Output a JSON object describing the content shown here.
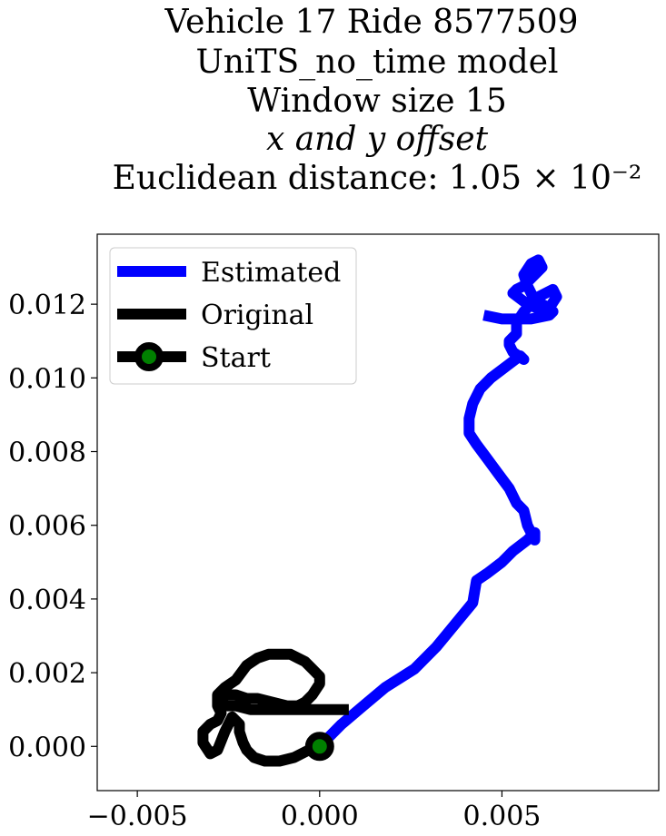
{
  "chart_data": {
    "type": "line",
    "title_lines": [
      "Vehicle 17 Ride 8577509",
      "UniTS_no_time model",
      "Window size 15",
      "x and y offset",
      "Euclidean distance: 1.05 × 10⁻²"
    ],
    "xlabel": "",
    "ylabel": "",
    "xlim": [
      -0.0061,
      0.0093
    ],
    "ylim": [
      -0.0012,
      0.0139
    ],
    "x_ticks": [
      -0.005,
      0.0,
      0.005
    ],
    "x_tick_labels": [
      "−0.005",
      "0.000",
      "0.005"
    ],
    "y_ticks": [
      0.0,
      0.002,
      0.004,
      0.006,
      0.008,
      0.01,
      0.012
    ],
    "y_tick_labels": [
      "0.000",
      "0.002",
      "0.004",
      "0.006",
      "0.008",
      "0.010",
      "0.012"
    ],
    "grid": false,
    "legend_position": "top-left",
    "series": [
      {
        "name": "Estimated",
        "color": "#0000ff",
        "x": [
          0.0,
          0.0006,
          0.0012,
          0.0018,
          0.0026,
          0.0032,
          0.0037,
          0.0042,
          0.0043,
          0.0046,
          0.005,
          0.0053,
          0.0057,
          0.0058,
          0.0059,
          0.0059,
          0.0057,
          0.0056,
          0.0054,
          0.0052,
          0.0049,
          0.0046,
          0.0043,
          0.0041,
          0.0041,
          0.0042,
          0.0044,
          0.0047,
          0.0051,
          0.0055,
          0.0056,
          0.0053,
          0.0052,
          0.0052,
          0.0054,
          0.0054,
          0.0056,
          0.006,
          0.0064,
          0.0065,
          0.0063,
          0.0059,
          0.0057,
          0.0056,
          0.0058,
          0.006,
          0.0061,
          0.0058,
          0.0056,
          0.0054,
          0.0053,
          0.0057,
          0.0062,
          0.0064,
          0.0063,
          0.0058,
          0.005,
          0.0045
        ],
        "y": [
          0.0,
          0.0006,
          0.0011,
          0.0016,
          0.0021,
          0.0027,
          0.0033,
          0.0039,
          0.0045,
          0.0047,
          0.005,
          0.0053,
          0.0056,
          0.0057,
          0.0058,
          0.0056,
          0.006,
          0.0064,
          0.0066,
          0.007,
          0.0074,
          0.0078,
          0.0082,
          0.0085,
          0.0089,
          0.0093,
          0.0097,
          0.01,
          0.0103,
          0.0106,
          0.0105,
          0.0107,
          0.0109,
          0.011,
          0.0112,
          0.0115,
          0.0118,
          0.0122,
          0.0124,
          0.0122,
          0.0119,
          0.0121,
          0.0125,
          0.0128,
          0.0131,
          0.0132,
          0.013,
          0.0127,
          0.0125,
          0.0124,
          0.0123,
          0.012,
          0.0118,
          0.0118,
          0.0117,
          0.0116,
          0.0116,
          0.0117
        ]
      },
      {
        "name": "Original",
        "color": "#000000",
        "x": [
          0.0,
          -0.0003,
          -0.0007,
          -0.0011,
          -0.0015,
          -0.0018,
          -0.002,
          -0.0021,
          -0.0022,
          -0.0022,
          -0.0024,
          -0.0026,
          -0.0028,
          -0.003,
          -0.0032,
          -0.0032,
          -0.003,
          -0.0028,
          -0.0027,
          -0.0028,
          -0.0028,
          -0.0026,
          -0.0023,
          -0.002,
          -0.0017,
          -0.0014,
          -0.0011,
          -0.0008,
          -0.0006,
          -0.0004,
          -0.0002,
          0.0,
          0.0,
          -0.0002,
          -0.0004,
          -0.0006,
          -0.0009,
          -0.0013,
          -0.0017,
          -0.002,
          -0.0023,
          -0.0026,
          -0.0027,
          -0.0026,
          -0.0023,
          -0.0019,
          -0.0014,
          -0.0009,
          -0.0004,
          0.0001,
          0.0005,
          0.0008
        ],
        "y": [
          0.0,
          -0.0001,
          -0.0003,
          -0.0004,
          -0.0004,
          -0.0003,
          -0.0001,
          0.0001,
          0.0004,
          0.0006,
          0.0008,
          0.0004,
          -0.0001,
          -0.0002,
          0.0001,
          0.0004,
          0.0006,
          0.0007,
          0.0009,
          0.0011,
          0.0014,
          0.0016,
          0.0018,
          0.0022,
          0.0024,
          0.0025,
          0.0025,
          0.0025,
          0.0024,
          0.0023,
          0.0021,
          0.0019,
          0.0017,
          0.0014,
          0.0012,
          0.0011,
          0.0011,
          0.0012,
          0.0013,
          0.0013,
          0.0014,
          0.0014,
          0.0012,
          0.0011,
          0.0011,
          0.001,
          0.001,
          0.001,
          0.001,
          0.001,
          0.001,
          0.001
        ]
      }
    ],
    "start_point": {
      "name": "Start",
      "x": 0.0,
      "y": 0.0,
      "edge_color": "#000000",
      "face_color": "#008000"
    }
  }
}
